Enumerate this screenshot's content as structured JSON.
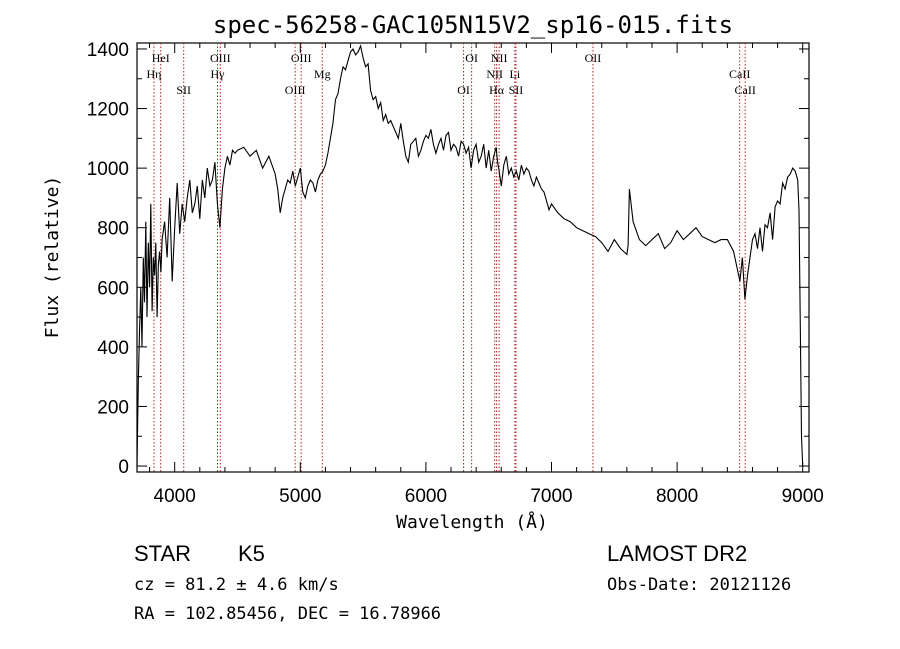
{
  "chart_data": {
    "type": "line",
    "title": "spec-56258-GAC105N15V2_sp16-015.fits",
    "xlabel": "Wavelength (Å)",
    "ylabel": "Flux (relative)",
    "xlim": [
      3700,
      9050
    ],
    "ylim": [
      -20,
      1420
    ],
    "x_ticks": [
      4000,
      5000,
      6000,
      7000,
      8000,
      9000
    ],
    "y_ticks": [
      0,
      200,
      400,
      600,
      800,
      1000,
      1200,
      1400
    ],
    "series": [
      {
        "x": [
          3700,
          3710,
          3720,
          3730,
          3740,
          3750,
          3760,
          3770,
          3780,
          3790,
          3800,
          3810,
          3820,
          3830,
          3840,
          3850,
          3860,
          3870,
          3880,
          3890,
          3900,
          3920,
          3940,
          3960,
          3980,
          4000,
          4020,
          4040,
          4060,
          4080,
          4100,
          4120,
          4140,
          4160,
          4180,
          4200,
          4220,
          4240,
          4260,
          4280,
          4300,
          4320,
          4340,
          4360,
          4380,
          4400,
          4420,
          4440,
          4460,
          4480,
          4500,
          4550,
          4600,
          4650,
          4700,
          4750,
          4800,
          4820,
          4840,
          4860,
          4880,
          4900,
          4920,
          4940,
          4960,
          4980,
          5000,
          5020,
          5040,
          5060,
          5080,
          5100,
          5120,
          5140,
          5160,
          5180,
          5200,
          5220,
          5240,
          5260,
          5280,
          5300,
          5320,
          5340,
          5360,
          5380,
          5400,
          5420,
          5440,
          5460,
          5480,
          5500,
          5520,
          5540,
          5560,
          5580,
          5600,
          5620,
          5640,
          5660,
          5680,
          5700,
          5720,
          5740,
          5760,
          5780,
          5800,
          5820,
          5840,
          5860,
          5880,
          5900,
          5920,
          5940,
          5960,
          5980,
          6000,
          6020,
          6040,
          6060,
          6080,
          6100,
          6120,
          6140,
          6160,
          6180,
          6200,
          6220,
          6240,
          6260,
          6280,
          6300,
          6320,
          6340,
          6360,
          6380,
          6400,
          6420,
          6440,
          6460,
          6480,
          6500,
          6520,
          6540,
          6560,
          6570,
          6580,
          6600,
          6620,
          6640,
          6660,
          6680,
          6700,
          6720,
          6740,
          6760,
          6780,
          6800,
          6820,
          6840,
          6860,
          6880,
          6900,
          6920,
          6940,
          6960,
          6980,
          7000,
          7050,
          7100,
          7150,
          7200,
          7250,
          7300,
          7350,
          7400,
          7450,
          7500,
          7550,
          7600,
          7610,
          7620,
          7650,
          7700,
          7750,
          7800,
          7850,
          7900,
          7950,
          8000,
          8050,
          8100,
          8150,
          8200,
          8250,
          8300,
          8350,
          8400,
          8450,
          8480,
          8500,
          8520,
          8540,
          8560,
          8580,
          8600,
          8620,
          8640,
          8660,
          8680,
          8700,
          8720,
          8740,
          8760,
          8780,
          8800,
          8820,
          8840,
          8860,
          8880,
          8900,
          8920,
          8940,
          8960,
          8970,
          8980,
          8990,
          9000
        ],
        "values": [
          0,
          280,
          450,
          600,
          400,
          700,
          550,
          820,
          500,
          750,
          600,
          880,
          520,
          700,
          640,
          750,
          500,
          680,
          720,
          650,
          760,
          820,
          700,
          900,
          620,
          800,
          950,
          780,
          880,
          820,
          900,
          960,
          850,
          880,
          940,
          830,
          960,
          900,
          1000,
          940,
          960,
          1020,
          880,
          800,
          930,
          1000,
          1040,
          1010,
          1060,
          1050,
          1060,
          1070,
          1040,
          1060,
          1000,
          1040,
          980,
          930,
          850,
          900,
          930,
          960,
          950,
          990,
          940,
          970,
          1000,
          920,
          900,
          940,
          960,
          950,
          920,
          960,
          980,
          990,
          1010,
          1050,
          1100,
          1150,
          1230,
          1250,
          1300,
          1340,
          1330,
          1360,
          1390,
          1400,
          1380,
          1390,
          1410,
          1370,
          1340,
          1350,
          1260,
          1230,
          1240,
          1200,
          1220,
          1160,
          1180,
          1150,
          1160,
          1140,
          1120,
          1100,
          1150,
          1090,
          1040,
          1020,
          1080,
          1090,
          1100,
          1040,
          1060,
          1090,
          1110,
          1100,
          1130,
          1080,
          1050,
          1080,
          1100,
          1060,
          1110,
          1120,
          1060,
          1080,
          1070,
          1040,
          1090,
          1080,
          1050,
          1070,
          1000,
          1060,
          1080,
          1020,
          1040,
          1080,
          1000,
          1060,
          990,
          1040,
          1070,
          1020,
          1000,
          940,
          1010,
          1040,
          980,
          1000,
          970,
          990,
          960,
          1010,
          980,
          1000,
          990,
          960,
          940,
          970,
          950,
          930,
          920,
          890,
          860,
          880,
          850,
          830,
          820,
          800,
          790,
          780,
          770,
          750,
          720,
          760,
          730,
          710,
          740,
          930,
          820,
          760,
          740,
          760,
          780,
          730,
          750,
          790,
          760,
          780,
          800,
          770,
          760,
          750,
          760,
          760,
          720,
          660,
          620,
          700,
          560,
          640,
          700,
          760,
          780,
          730,
          800,
          720,
          810,
          800,
          850,
          760,
          870,
          890,
          880,
          950,
          930,
          970,
          980,
          1000,
          990,
          960,
          860,
          500,
          100,
          0
        ]
      }
    ],
    "reference_lines": [
      {
        "wavelength": 3889,
        "label": "HeI"
      },
      {
        "wavelength": 3835,
        "label": "Hη"
      },
      {
        "wavelength": 4072,
        "label": "SII"
      },
      {
        "wavelength": 4363,
        "label": "OIII"
      },
      {
        "wavelength": 4341,
        "label": "Hγ"
      },
      {
        "wavelength": 4959,
        "label": "OIII"
      },
      {
        "wavelength": 5007,
        "label": "OIII"
      },
      {
        "wavelength": 5175,
        "label": "Mg"
      },
      {
        "wavelength": 6300,
        "label": "OI"
      },
      {
        "wavelength": 6364,
        "label": "OI"
      },
      {
        "wavelength": 6548,
        "label": "NII"
      },
      {
        "wavelength": 6563,
        "label": "Hα"
      },
      {
        "wavelength": 6583,
        "label": "NII"
      },
      {
        "wavelength": 6708,
        "label": "Li"
      },
      {
        "wavelength": 6717,
        "label": "SII"
      },
      {
        "wavelength": 7330,
        "label": "OII"
      },
      {
        "wavelength": 8498,
        "label": "CaII"
      },
      {
        "wavelength": 8542,
        "label": "CaII"
      }
    ]
  },
  "info": {
    "object_type": "STAR",
    "subclass": "K5",
    "survey": "LAMOST DR2",
    "cz": "cz = 81.2 ± 4.6 km/s",
    "obs_date": "Obs-Date: 20121126",
    "coords": "RA = 102.85456, DEC =  16.78966"
  },
  "colors": {
    "spectrum": "#000000",
    "reference_line": "#b22222",
    "background": "#ffffff"
  }
}
